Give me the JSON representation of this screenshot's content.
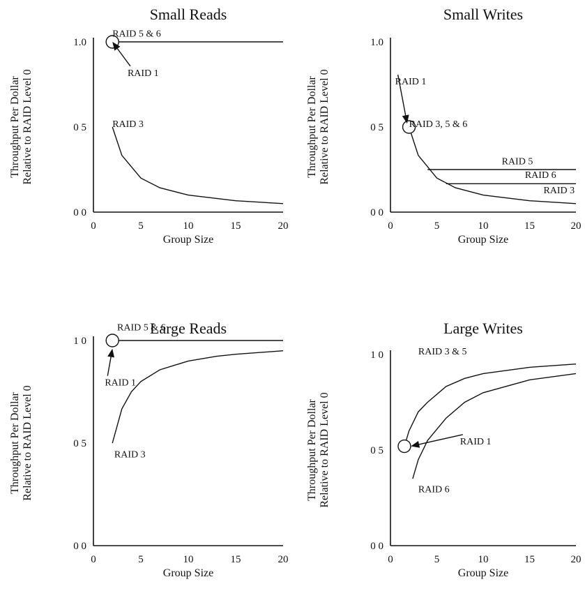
{
  "chart_data": [
    {
      "type": "line",
      "title": "Small Reads",
      "xlabel": "Group Size",
      "ylabel": [
        "Throughput Per Dollar",
        "Relative to RAID Level 0"
      ],
      "xlim": [
        0,
        20
      ],
      "ylim": [
        0,
        1.0
      ],
      "xticks": [
        0,
        5,
        10,
        15,
        20
      ],
      "xtick_labels": [
        "0",
        "5",
        "10",
        "15",
        "20"
      ],
      "yticks": [
        0,
        0.5,
        1.0
      ],
      "ytick_labels": [
        "0 0",
        "0 5",
        "1.0"
      ],
      "series": [
        {
          "name": "RAID 5 & 6",
          "x": [
            2,
            20
          ],
          "y": [
            1.0,
            1.0
          ]
        },
        {
          "name": "RAID 3",
          "x": [
            2,
            3,
            5,
            7,
            10,
            15,
            20
          ],
          "y": [
            0.5,
            0.333,
            0.2,
            0.143,
            0.1,
            0.067,
            0.05
          ]
        }
      ],
      "markers": [
        {
          "x": 2,
          "y": 1.0,
          "label": "RAID 1"
        }
      ],
      "annotations": [
        {
          "text": "RAID 5 & 6",
          "x": 2,
          "y": 1.03
        },
        {
          "text": "RAID 1",
          "x": 3.6,
          "y": 0.8,
          "arrow_to": [
            2,
            1.0
          ]
        },
        {
          "text": "RAID 3",
          "x": 2,
          "y": 0.5
        }
      ]
    },
    {
      "type": "line",
      "title": "Small Writes",
      "xlabel": "Group Size",
      "ylabel": [
        "Throughput Per Dollar",
        "Relative to RAID Level 0"
      ],
      "xlim": [
        0,
        20
      ],
      "ylim": [
        0,
        1.0
      ],
      "xticks": [
        0,
        5,
        10,
        15,
        20
      ],
      "xtick_labels": [
        "0",
        "5",
        "10",
        "15",
        "20"
      ],
      "yticks": [
        0,
        0.5,
        1.0
      ],
      "ytick_labels": [
        "0 0",
        "0 5",
        "1.0"
      ],
      "series": [
        {
          "name": "RAID 3",
          "x": [
            2,
            3,
            5,
            7,
            10,
            15,
            20
          ],
          "y": [
            0.5,
            0.333,
            0.2,
            0.143,
            0.1,
            0.067,
            0.05
          ]
        },
        {
          "name": "RAID 5",
          "x": [
            4,
            20
          ],
          "y": [
            0.25,
            0.25
          ]
        },
        {
          "name": "RAID 6",
          "x": [
            6,
            20
          ],
          "y": [
            0.167,
            0.167
          ]
        }
      ],
      "markers": [
        {
          "x": 2,
          "y": 0.5,
          "label": "RAID 3, 5 & 6"
        }
      ],
      "annotations": [
        {
          "text": "RAID 1",
          "x": 0.5,
          "y": 0.75,
          "arrow_to": [
            1.8,
            0.52
          ]
        },
        {
          "text": "RAID 3, 5 & 6",
          "x": 2,
          "y": 0.5
        },
        {
          "text": "RAID 5",
          "x": 12,
          "y": 0.28
        },
        {
          "text": "RAID 6",
          "x": 14.5,
          "y": 0.2
        },
        {
          "text": "RAID 3",
          "x": 16.5,
          "y": 0.11
        }
      ]
    },
    {
      "type": "line",
      "title": "Large Reads",
      "xlabel": "Group Size",
      "ylabel": [
        "Throughput Per Dollar",
        "Relative to RAID Level 0"
      ],
      "xlim": [
        0,
        20
      ],
      "ylim": [
        0,
        1.0
      ],
      "xticks": [
        0,
        5,
        10,
        15,
        20
      ],
      "xtick_labels": [
        "0",
        "5",
        "10",
        "15",
        "20"
      ],
      "yticks": [
        0,
        0.5,
        1.0
      ],
      "ytick_labels": [
        "0 0",
        "0 5",
        "1 0"
      ],
      "series": [
        {
          "name": "RAID 5 & 6",
          "x": [
            2,
            20
          ],
          "y": [
            1.0,
            1.0
          ]
        },
        {
          "name": "RAID 3",
          "x": [
            2,
            3,
            4,
            5,
            7,
            10,
            13,
            15,
            20
          ],
          "y": [
            0.5,
            0.667,
            0.75,
            0.8,
            0.857,
            0.9,
            0.923,
            0.933,
            0.95
          ]
        }
      ],
      "markers": [
        {
          "x": 2,
          "y": 1.0,
          "label": "RAID 1"
        }
      ],
      "annotations": [
        {
          "text": "RAID 5 & 6",
          "x": 2.5,
          "y": 1.05
        },
        {
          "text": "RAID 1",
          "x": 1.2,
          "y": 0.78,
          "arrow_to": [
            2,
            0.96
          ]
        },
        {
          "text": "RAID 3",
          "x": 2.2,
          "y": 0.43
        }
      ]
    },
    {
      "type": "line",
      "title": "Large Writes",
      "xlabel": "Group Size",
      "ylabel": [
        "Throughput Per Dollar",
        "Relative to RAID Level 0"
      ],
      "xlim": [
        0,
        20
      ],
      "ylim": [
        0,
        1.0
      ],
      "xticks": [
        0,
        5,
        10,
        15,
        20
      ],
      "xtick_labels": [
        "0",
        "5",
        "10",
        "15",
        "20"
      ],
      "yticks": [
        0,
        0.5,
        1.0
      ],
      "ytick_labels": [
        "0 0",
        "0 5",
        "1 0"
      ],
      "series": [
        {
          "name": "RAID 3 & 5",
          "x": [
            1.5,
            2,
            3,
            4,
            6,
            8,
            10,
            15,
            20
          ],
          "y": [
            0.52,
            0.6,
            0.7,
            0.75,
            0.833,
            0.875,
            0.9,
            0.933,
            0.95
          ]
        },
        {
          "name": "RAID 6",
          "x": [
            2.4,
            3,
            4,
            6,
            8,
            10,
            15,
            20
          ],
          "y": [
            0.35,
            0.45,
            0.55,
            0.667,
            0.75,
            0.8,
            0.867,
            0.9
          ]
        }
      ],
      "markers": [
        {
          "x": 1.5,
          "y": 0.52,
          "label": "RAID 1"
        }
      ],
      "annotations": [
        {
          "text": "RAID 3 & 5",
          "x": 3,
          "y": 1.0
        },
        {
          "text": "RAID 1",
          "x": 7.5,
          "y": 0.53,
          "arrow_to": [
            2.2,
            0.52
          ]
        },
        {
          "text": "RAID 6",
          "x": 3,
          "y": 0.28
        }
      ]
    }
  ]
}
